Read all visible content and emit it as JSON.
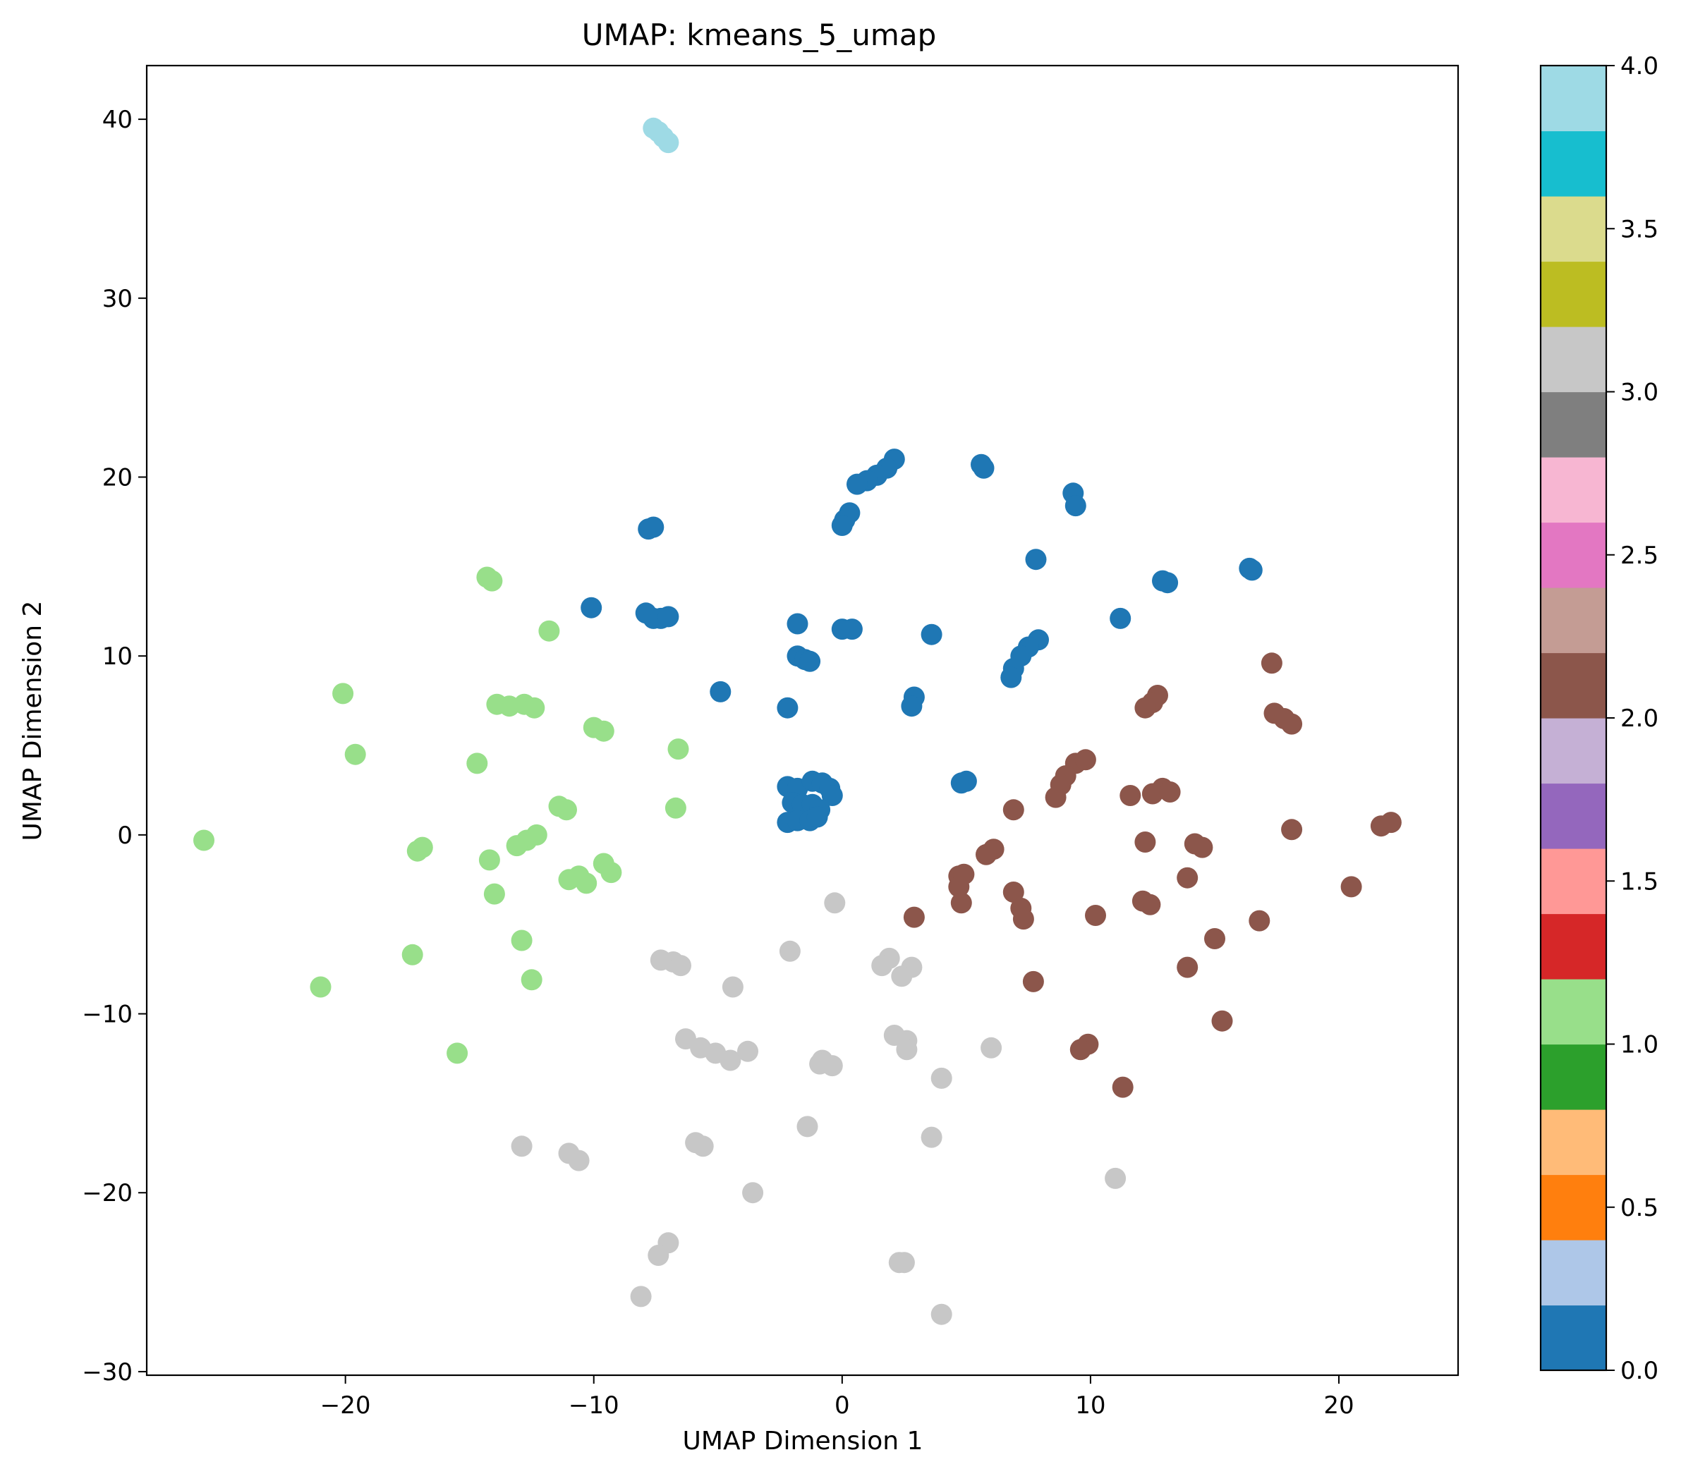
{
  "chart_data": {
    "type": "scatter",
    "title": "UMAP: kmeans_5_umap",
    "xlabel": "UMAP Dimension 1",
    "ylabel": "UMAP Dimension 2",
    "xlim": [
      -28,
      24.8
    ],
    "ylim": [
      -30.2,
      43
    ],
    "xticks": [
      -20,
      -10,
      0,
      10,
      20
    ],
    "xtick_labels": [
      "−20",
      "−10",
      "0",
      "10",
      "20"
    ],
    "yticks": [
      -30,
      -20,
      -10,
      0,
      10,
      20,
      30,
      40
    ],
    "ytick_labels": [
      "−30",
      "−20",
      "−10",
      "0",
      "10",
      "20",
      "30",
      "40"
    ],
    "grid": false,
    "colorbar": {
      "range": [
        0,
        4
      ],
      "ticks": [
        0,
        0.5,
        1,
        1.5,
        2,
        2.5,
        3,
        3.5,
        4
      ],
      "tick_labels": [
        "0.0",
        "0.5",
        "1.0",
        "1.5",
        "2.0",
        "2.5",
        "3.0",
        "3.5",
        "4.0"
      ],
      "colors": [
        "#1f77b4",
        "#aec7e8",
        "#ff7f0e",
        "#ffbb78",
        "#2ca02c",
        "#98df8a",
        "#d62728",
        "#ff9896",
        "#9467bd",
        "#c5b0d5",
        "#8c564b",
        "#c49c94",
        "#e377c2",
        "#f7b6d2",
        "#7f7f7f",
        "#c7c7c7",
        "#bcbd22",
        "#dbdb8d",
        "#17becf",
        "#9edae5"
      ]
    },
    "cluster_colors": {
      "0": "#1f77b4",
      "1": "#98df8a",
      "2": "#8c564b",
      "3": "#c7c7c7",
      "4": "#9edae5"
    },
    "series": [
      {
        "cluster": 4,
        "points": [
          [
            -7.6,
            39.5
          ],
          [
            -7.4,
            39.3
          ],
          [
            -7.2,
            39.0
          ],
          [
            -7.0,
            38.7
          ]
        ]
      },
      {
        "cluster": 0,
        "points": [
          [
            2.1,
            21.0
          ],
          [
            1.8,
            20.5
          ],
          [
            1.4,
            20.1
          ],
          [
            1.0,
            19.8
          ],
          [
            0.6,
            19.6
          ],
          [
            5.6,
            20.7
          ],
          [
            5.7,
            20.5
          ],
          [
            9.3,
            19.1
          ],
          [
            9.4,
            18.4
          ],
          [
            0.3,
            18.0
          ],
          [
            0.1,
            17.6
          ],
          [
            0.0,
            17.3
          ],
          [
            -7.8,
            17.1
          ],
          [
            -7.6,
            17.2
          ],
          [
            7.8,
            15.4
          ],
          [
            16.4,
            14.9
          ],
          [
            16.5,
            14.8
          ],
          [
            12.9,
            14.2
          ],
          [
            13.1,
            14.1
          ],
          [
            -10.1,
            12.7
          ],
          [
            -7.9,
            12.4
          ],
          [
            -7.6,
            12.1
          ],
          [
            -7.3,
            12.1
          ],
          [
            -7.0,
            12.2
          ],
          [
            -1.8,
            11.8
          ],
          [
            11.2,
            12.1
          ],
          [
            0.0,
            11.5
          ],
          [
            0.4,
            11.5
          ],
          [
            3.6,
            11.2
          ],
          [
            7.9,
            10.9
          ],
          [
            7.5,
            10.5
          ],
          [
            7.2,
            10.0
          ],
          [
            6.9,
            9.3
          ],
          [
            6.8,
            8.8
          ],
          [
            -1.8,
            10.0
          ],
          [
            -1.5,
            9.8
          ],
          [
            -1.3,
            9.7
          ],
          [
            -4.9,
            8.0
          ],
          [
            -2.2,
            7.1
          ],
          [
            2.9,
            7.7
          ],
          [
            2.8,
            7.2
          ],
          [
            4.8,
            2.9
          ],
          [
            5.0,
            3.0
          ],
          [
            -2.2,
            2.7
          ],
          [
            -1.8,
            2.6
          ],
          [
            -1.2,
            3.0
          ],
          [
            -0.8,
            2.9
          ],
          [
            -0.5,
            2.6
          ],
          [
            -0.4,
            2.2
          ],
          [
            -2.0,
            1.8
          ],
          [
            -1.6,
            1.7
          ],
          [
            -1.2,
            1.7
          ],
          [
            -0.9,
            1.4
          ],
          [
            -2.2,
            0.7
          ],
          [
            -1.8,
            0.8
          ],
          [
            -1.3,
            0.8
          ],
          [
            -1.0,
            1.0
          ]
        ]
      },
      {
        "cluster": 1,
        "points": [
          [
            -14.3,
            14.4
          ],
          [
            -14.1,
            14.2
          ],
          [
            -11.8,
            11.4
          ],
          [
            -20.1,
            7.9
          ],
          [
            -13.9,
            7.3
          ],
          [
            -13.4,
            7.2
          ],
          [
            -12.8,
            7.3
          ],
          [
            -12.4,
            7.1
          ],
          [
            -10.0,
            6.0
          ],
          [
            -9.6,
            5.8
          ],
          [
            -6.6,
            4.8
          ],
          [
            -19.6,
            4.5
          ],
          [
            -14.7,
            4.0
          ],
          [
            -11.4,
            1.6
          ],
          [
            -11.1,
            1.4
          ],
          [
            -6.7,
            1.5
          ],
          [
            -25.7,
            -0.3
          ],
          [
            -12.3,
            0.0
          ],
          [
            -12.7,
            -0.3
          ],
          [
            -13.1,
            -0.6
          ],
          [
            -16.9,
            -0.7
          ],
          [
            -17.1,
            -0.9
          ],
          [
            -14.2,
            -1.4
          ],
          [
            -9.6,
            -1.6
          ],
          [
            -9.3,
            -2.1
          ],
          [
            -10.6,
            -2.3
          ],
          [
            -11.0,
            -2.5
          ],
          [
            -10.3,
            -2.7
          ],
          [
            -14.0,
            -3.3
          ],
          [
            -12.9,
            -5.9
          ],
          [
            -17.3,
            -6.7
          ],
          [
            -12.5,
            -8.1
          ],
          [
            -21.0,
            -8.5
          ],
          [
            -15.5,
            -12.2
          ]
        ]
      },
      {
        "cluster": 2,
        "points": [
          [
            17.3,
            9.6
          ],
          [
            12.7,
            7.8
          ],
          [
            12.5,
            7.4
          ],
          [
            12.2,
            7.1
          ],
          [
            17.4,
            6.8
          ],
          [
            17.8,
            6.5
          ],
          [
            18.1,
            6.2
          ],
          [
            9.4,
            4.0
          ],
          [
            9.8,
            4.2
          ],
          [
            9.0,
            3.3
          ],
          [
            8.8,
            2.8
          ],
          [
            8.6,
            2.1
          ],
          [
            12.9,
            2.6
          ],
          [
            12.5,
            2.3
          ],
          [
            11.6,
            2.2
          ],
          [
            13.2,
            2.4
          ],
          [
            6.9,
            1.4
          ],
          [
            21.7,
            0.5
          ],
          [
            22.1,
            0.7
          ],
          [
            18.1,
            0.3
          ],
          [
            12.2,
            -0.4
          ],
          [
            14.2,
            -0.5
          ],
          [
            14.5,
            -0.7
          ],
          [
            6.1,
            -0.8
          ],
          [
            5.8,
            -1.1
          ],
          [
            4.7,
            -2.3
          ],
          [
            4.9,
            -2.2
          ],
          [
            13.9,
            -2.4
          ],
          [
            20.5,
            -2.9
          ],
          [
            4.7,
            -2.9
          ],
          [
            6.9,
            -3.2
          ],
          [
            12.1,
            -3.7
          ],
          [
            12.4,
            -3.9
          ],
          [
            4.8,
            -3.8
          ],
          [
            7.2,
            -4.1
          ],
          [
            7.3,
            -4.7
          ],
          [
            2.9,
            -4.6
          ],
          [
            10.2,
            -4.5
          ],
          [
            16.8,
            -4.8
          ],
          [
            15.0,
            -5.8
          ],
          [
            13.9,
            -7.4
          ],
          [
            7.7,
            -8.2
          ],
          [
            15.3,
            -10.4
          ],
          [
            9.9,
            -11.7
          ],
          [
            9.6,
            -12.0
          ],
          [
            11.3,
            -14.1
          ]
        ]
      },
      {
        "cluster": 3,
        "points": [
          [
            -0.3,
            -3.8
          ],
          [
            -2.1,
            -6.5
          ],
          [
            -6.8,
            -7.1
          ],
          [
            -7.3,
            -7.0
          ],
          [
            -6.5,
            -7.3
          ],
          [
            1.9,
            -6.9
          ],
          [
            1.6,
            -7.3
          ],
          [
            2.8,
            -7.4
          ],
          [
            2.4,
            -7.9
          ],
          [
            -4.4,
            -8.5
          ],
          [
            -6.3,
            -11.4
          ],
          [
            -5.7,
            -11.9
          ],
          [
            -5.1,
            -12.2
          ],
          [
            -4.5,
            -12.6
          ],
          [
            -3.8,
            -12.1
          ],
          [
            -0.8,
            -12.6
          ],
          [
            -0.4,
            -12.9
          ],
          [
            -0.9,
            -12.8
          ],
          [
            2.1,
            -11.2
          ],
          [
            2.6,
            -11.5
          ],
          [
            2.6,
            -12.0
          ],
          [
            6.0,
            -11.9
          ],
          [
            4.0,
            -13.6
          ],
          [
            -1.4,
            -16.3
          ],
          [
            3.6,
            -16.9
          ],
          [
            -5.9,
            -17.2
          ],
          [
            -5.6,
            -17.4
          ],
          [
            -12.9,
            -17.4
          ],
          [
            -11.0,
            -17.8
          ],
          [
            -10.6,
            -18.2
          ],
          [
            11.0,
            -19.2
          ],
          [
            -3.6,
            -20.0
          ],
          [
            -7.0,
            -22.8
          ],
          [
            -7.4,
            -23.5
          ],
          [
            2.3,
            -23.9
          ],
          [
            2.5,
            -23.9
          ],
          [
            -8.1,
            -25.8
          ],
          [
            4.0,
            -26.8
          ]
        ]
      }
    ]
  }
}
